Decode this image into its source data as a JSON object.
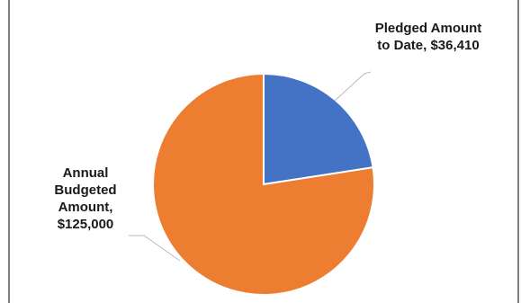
{
  "chart_data": {
    "type": "pie",
    "categories": [
      "Pledged Amount to Date",
      "Annual Budgeted Amount"
    ],
    "values": [
      36410,
      125000
    ],
    "value_labels": [
      "Pledged Amount to Date, $36,410",
      "Annual Budgeted Amount, $125,000"
    ],
    "colors": [
      "#4472c4",
      "#ed7d31"
    ]
  }
}
